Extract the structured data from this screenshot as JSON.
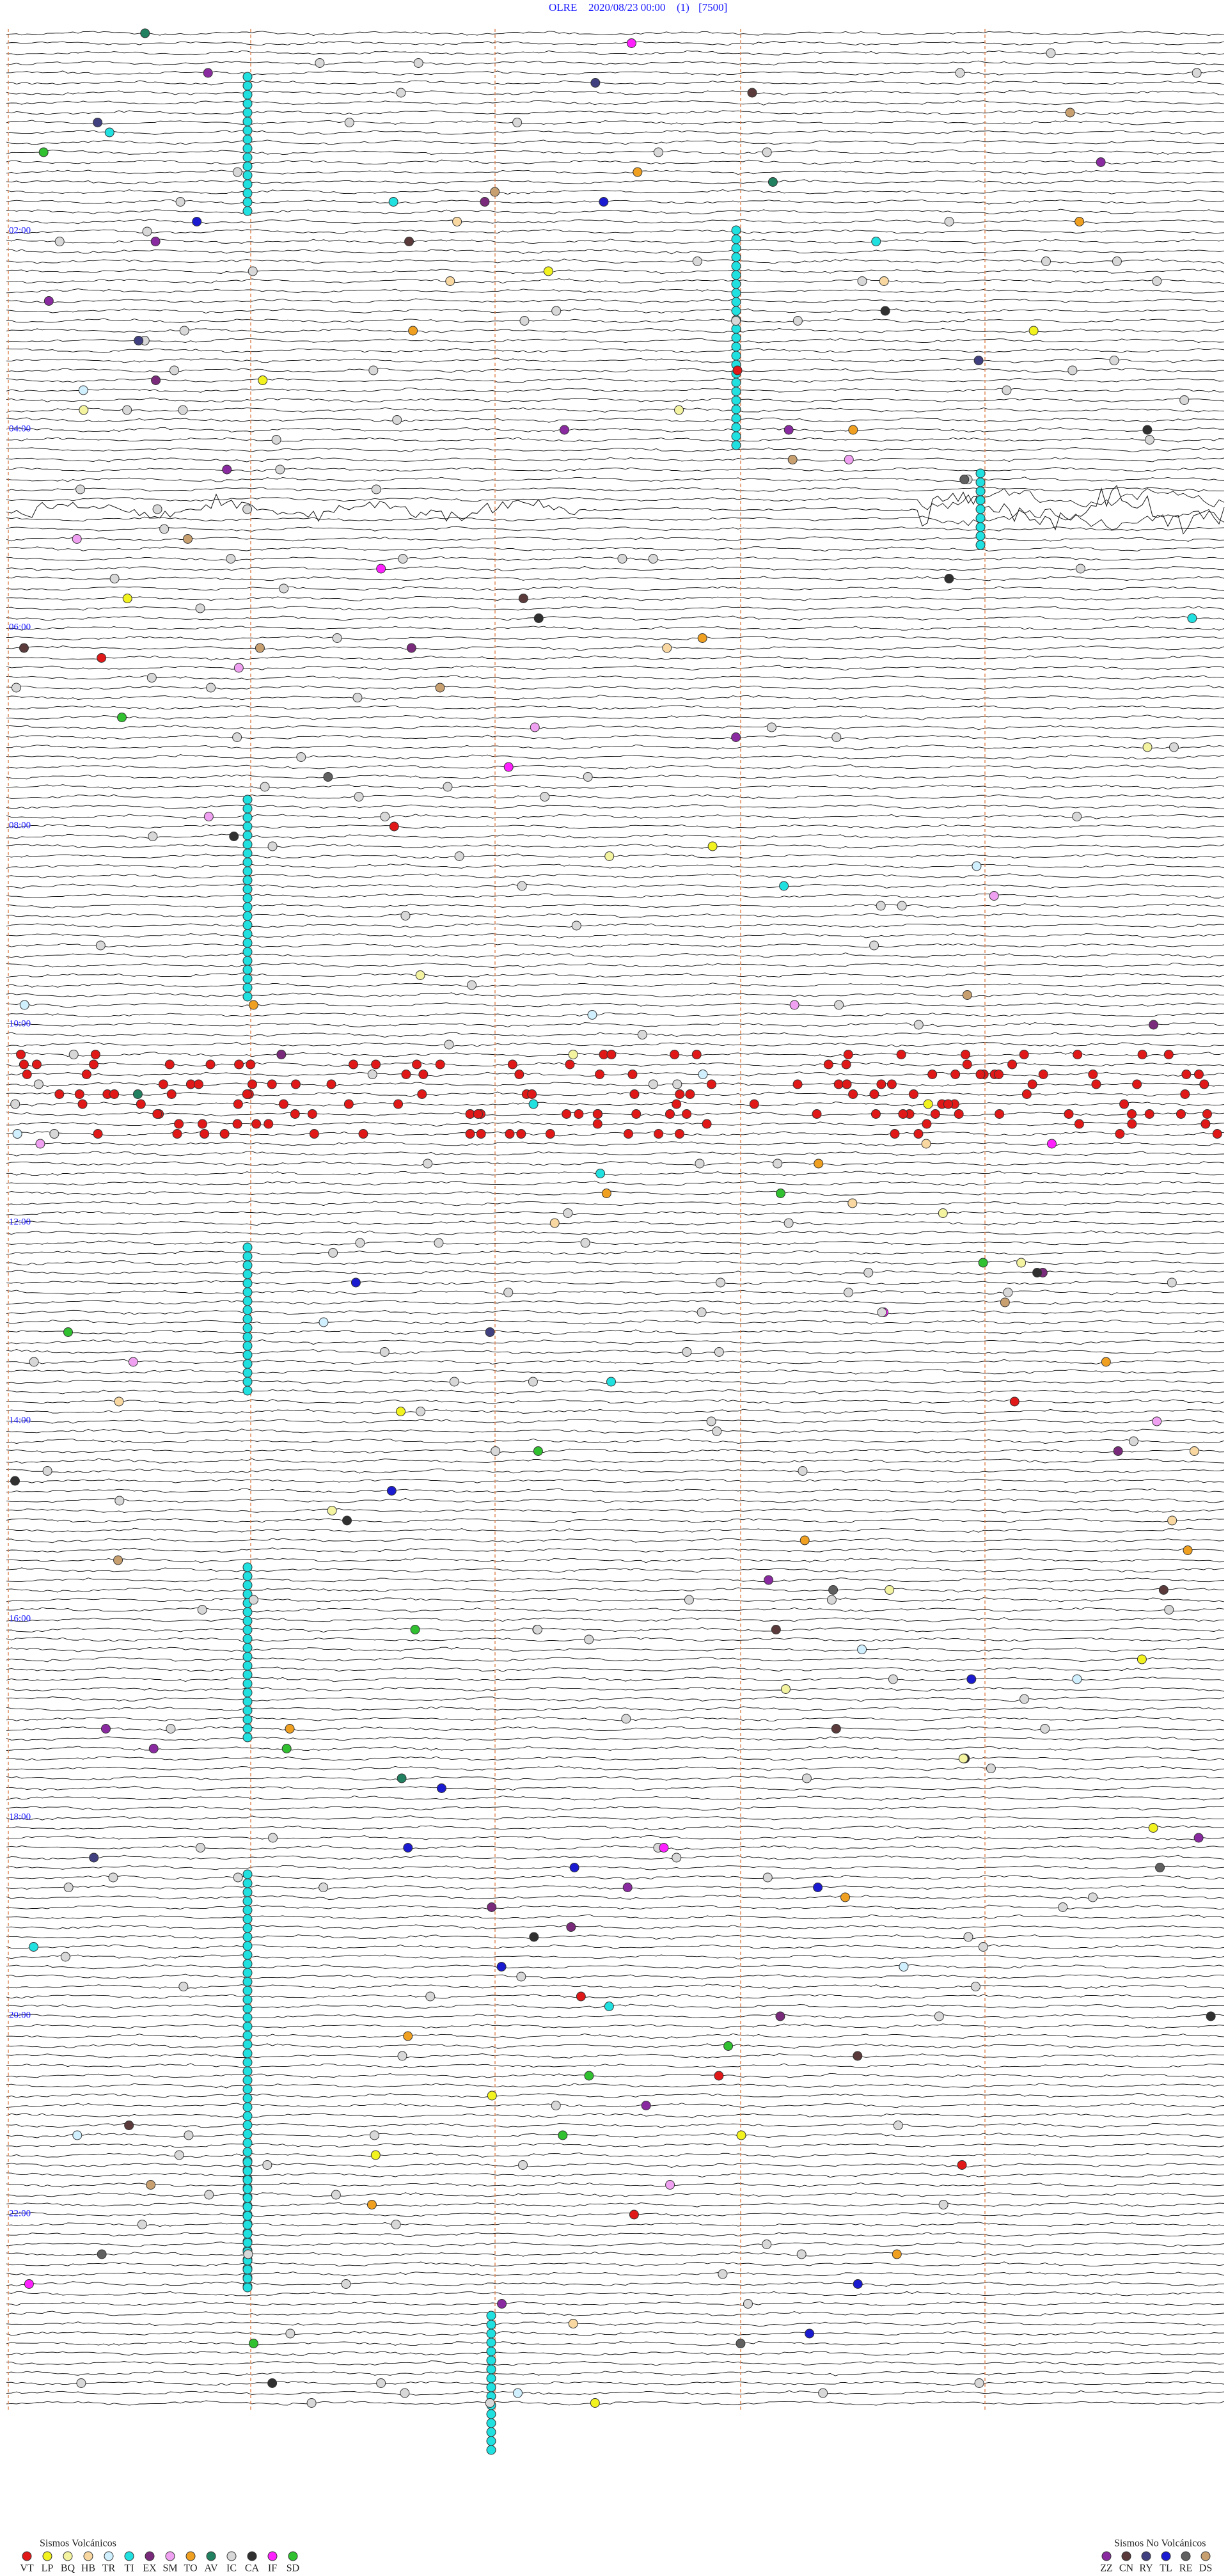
{
  "header": {
    "station": "OLRE",
    "datetime": "2020/08/23 00:00",
    "channel": "(1)",
    "scale": "[7500]"
  },
  "time_labels": [
    "02:00",
    "04:00",
    "06:00",
    "08:00",
    "10:00",
    "12:00",
    "14:00",
    "16:00",
    "18:00",
    "20:00",
    "22:00"
  ],
  "legend": {
    "volcanic": {
      "title": "Sismos Volcánicos",
      "codes": [
        {
          "code": "VT",
          "color": "#e01818"
        },
        {
          "code": "LP",
          "color": "#f2f21e"
        },
        {
          "code": "BQ",
          "color": "#f4f4a0"
        },
        {
          "code": "HB",
          "color": "#f8d8a0"
        },
        {
          "code": "TR",
          "color": "#d0f0ff"
        },
        {
          "code": "TI",
          "color": "#20e0e0"
        },
        {
          "code": "EX",
          "color": "#7a2a7a"
        },
        {
          "code": "SM",
          "color": "#f0a0f0"
        },
        {
          "code": "TO",
          "color": "#f0a020"
        },
        {
          "code": "AV",
          "color": "#208060"
        },
        {
          "code": "IC",
          "color": "#d8d8d8"
        },
        {
          "code": "CA",
          "color": "#303030"
        },
        {
          "code": "IF",
          "color": "#ff20ff"
        },
        {
          "code": "SD",
          "color": "#30c030"
        }
      ]
    },
    "non_volcanic": {
      "title": "Sismos No Volcánicos",
      "codes": [
        {
          "code": "ZZ",
          "color": "#8a2aa0"
        },
        {
          "code": "CN",
          "color": "#5a3a3a"
        },
        {
          "code": "RY",
          "color": "#404080"
        },
        {
          "code": "TL",
          "color": "#1a1ad0"
        },
        {
          "code": "RE",
          "color": "#606060"
        },
        {
          "code": "DS",
          "color": "#c8a070"
        }
      ]
    }
  }
}
